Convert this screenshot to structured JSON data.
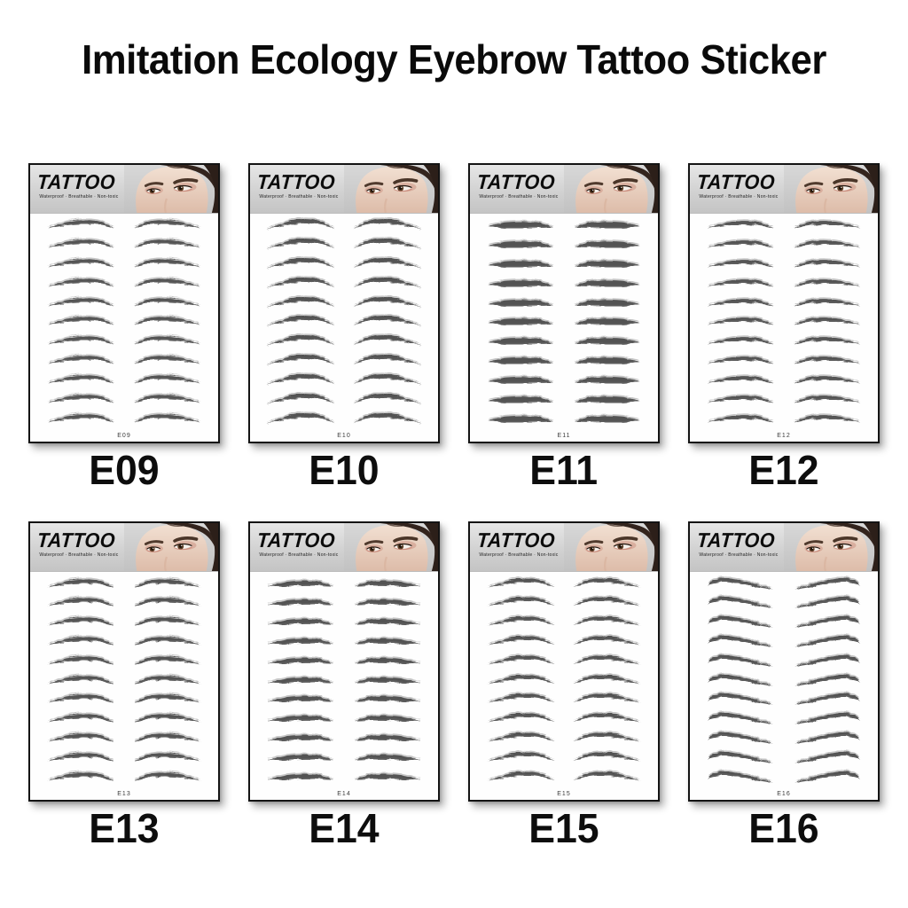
{
  "title": "Imitation Ecology Eyebrow Tattoo Sticker",
  "brand": {
    "name": "TATTOO",
    "tagline": "Waterproof · Breathable · Non-toxic"
  },
  "sheet": {
    "rows_per_sheet": 11,
    "brows_per_row": 2
  },
  "cards": [
    {
      "label": "E09",
      "code": "E09",
      "style": "natural"
    },
    {
      "label": "E10",
      "code": "E10",
      "style": "peaked"
    },
    {
      "label": "E11",
      "code": "E11",
      "style": "straight"
    },
    {
      "label": "E12",
      "code": "E12",
      "style": "soft"
    },
    {
      "label": "E13",
      "code": "E13",
      "style": "wispy"
    },
    {
      "label": "E14",
      "code": "E14",
      "style": "flat"
    },
    {
      "label": "E15",
      "code": "E15",
      "style": "feathered"
    },
    {
      "label": "E16",
      "code": "E16",
      "style": "higharch"
    }
  ],
  "colors": {
    "title_black": "#0a0a0a",
    "header_gray": "#d2d2d2",
    "brow_ink": "#404040",
    "card_border": "#141414"
  }
}
